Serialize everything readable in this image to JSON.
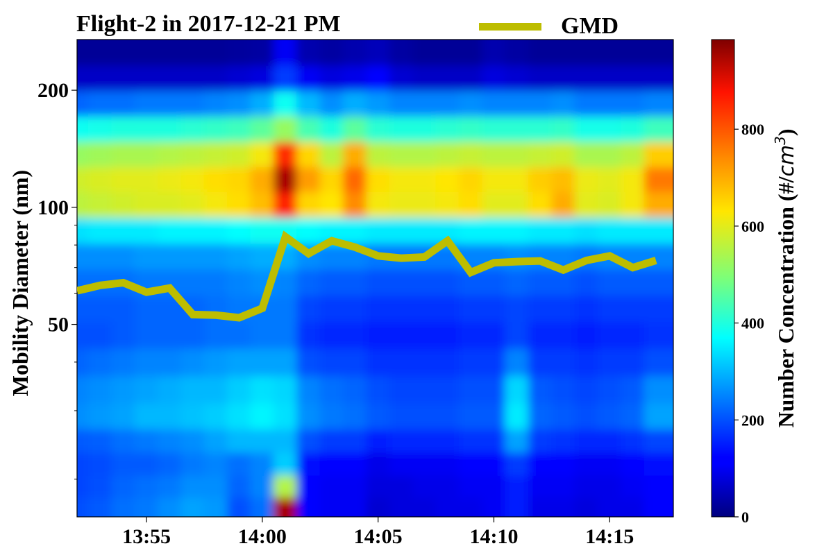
{
  "title": "Flight-2 in 2017-12-21 PM",
  "colors": {
    "gmd_line": "#bdbd00"
  },
  "chart_data": {
    "type": "heatmap",
    "title": "Flight-2 in 2017-12-21 PM",
    "ylabel": "Mobility Diameter (nm)",
    "colorbar_label_text": "Number Concentration (#/",
    "colorbar_label_unit": "cm",
    "colorbar_label_exp": "3",
    "colorbar_label_close": ")",
    "colormap": "jet",
    "y_scale": "log",
    "xlim": [
      "13:52:00",
      "14:17:45"
    ],
    "ylim": [
      16,
      270
    ],
    "clim": [
      0,
      985
    ],
    "x_tick_labels": [
      "13:55",
      "14:00",
      "14:05",
      "14:10",
      "14:15"
    ],
    "x_ticks": [
      "13:55",
      "14:00",
      "14:05",
      "14:10",
      "14:15"
    ],
    "y_tick_labels": [
      "50",
      "100",
      "200"
    ],
    "y_ticks": [
      50,
      100,
      200
    ],
    "colorbar_ticks": [
      0,
      200,
      400,
      600,
      800
    ],
    "legend": [
      {
        "label": "GMD",
        "location": "top-center"
      }
    ],
    "times": [
      "13:52",
      "13:53",
      "13:54",
      "13:55",
      "13:56",
      "13:57",
      "13:58",
      "13:59",
      "14:00",
      "14:01",
      "14:02",
      "14:03",
      "14:04",
      "14:05",
      "14:06",
      "14:07",
      "14:08",
      "14:09",
      "14:10",
      "14:11",
      "14:12",
      "14:13",
      "14:14",
      "14:15",
      "14:16",
      "14:17"
    ],
    "diameters": [
      17,
      19,
      22,
      25,
      29,
      34,
      40,
      47,
      55,
      64,
      75,
      87,
      102,
      118,
      137,
      159,
      185,
      215,
      250
    ],
    "concentration": [
      [
        200,
        210,
        230,
        240,
        260,
        280,
        270,
        200,
        230,
        950,
        110,
        100,
        100,
        70,
        80,
        80,
        90,
        90,
        100,
        150,
        90,
        90,
        80,
        90,
        90,
        110
      ],
      [
        190,
        200,
        220,
        230,
        240,
        260,
        260,
        220,
        250,
        550,
        110,
        100,
        100,
        80,
        80,
        90,
        90,
        100,
        100,
        150,
        100,
        100,
        90,
        90,
        100,
        120
      ],
      [
        190,
        195,
        210,
        210,
        220,
        240,
        250,
        230,
        250,
        320,
        130,
        110,
        110,
        90,
        100,
        100,
        100,
        110,
        110,
        180,
        110,
        110,
        100,
        100,
        110,
        130
      ],
      [
        210,
        215,
        230,
        240,
        250,
        260,
        280,
        300,
        300,
        300,
        200,
        180,
        180,
        150,
        160,
        160,
        160,
        170,
        170,
        280,
        180,
        170,
        160,
        160,
        170,
        190
      ],
      [
        260,
        270,
        280,
        300,
        300,
        310,
        320,
        340,
        360,
        340,
        260,
        240,
        230,
        210,
        200,
        200,
        200,
        210,
        210,
        350,
        220,
        210,
        200,
        210,
        220,
        280
      ],
      [
        250,
        260,
        270,
        280,
        290,
        300,
        300,
        320,
        340,
        330,
        250,
        230,
        220,
        200,
        190,
        190,
        190,
        200,
        200,
        330,
        210,
        200,
        190,
        200,
        210,
        260
      ],
      [
        220,
        230,
        240,
        250,
        250,
        260,
        270,
        280,
        280,
        280,
        200,
        190,
        190,
        170,
        170,
        170,
        170,
        180,
        180,
        250,
        180,
        180,
        170,
        180,
        180,
        200
      ],
      [
        200,
        200,
        210,
        220,
        220,
        220,
        230,
        230,
        240,
        240,
        170,
        160,
        160,
        150,
        150,
        150,
        150,
        160,
        160,
        190,
        160,
        160,
        150,
        160,
        160,
        170
      ],
      [
        210,
        210,
        210,
        220,
        220,
        220,
        230,
        240,
        240,
        240,
        190,
        180,
        180,
        170,
        170,
        170,
        170,
        180,
        180,
        190,
        180,
        180,
        170,
        180,
        180,
        180
      ],
      [
        230,
        230,
        230,
        240,
        240,
        240,
        240,
        250,
        260,
        250,
        220,
        210,
        210,
        200,
        200,
        200,
        200,
        210,
        210,
        220,
        210,
        210,
        200,
        210,
        210,
        210
      ],
      [
        260,
        260,
        260,
        270,
        270,
        270,
        270,
        280,
        290,
        290,
        260,
        250,
        250,
        240,
        240,
        240,
        240,
        250,
        250,
        260,
        250,
        250,
        240,
        250,
        250,
        250
      ],
      [
        340,
        350,
        350,
        350,
        360,
        360,
        360,
        370,
        380,
        380,
        370,
        360,
        360,
        350,
        350,
        350,
        350,
        360,
        360,
        360,
        350,
        350,
        340,
        350,
        350,
        350
      ],
      [
        560,
        570,
        580,
        590,
        590,
        600,
        620,
        640,
        680,
        860,
        650,
        630,
        740,
        620,
        610,
        610,
        620,
        640,
        600,
        600,
        640,
        700,
        600,
        590,
        620,
        700
      ],
      [
        580,
        590,
        600,
        600,
        610,
        620,
        640,
        650,
        700,
        950,
        720,
        650,
        780,
        640,
        620,
        620,
        630,
        650,
        620,
        620,
        660,
        680,
        610,
        600,
        620,
        760
      ],
      [
        520,
        530,
        540,
        540,
        550,
        560,
        570,
        580,
        620,
        850,
        650,
        560,
        700,
        560,
        550,
        550,
        560,
        570,
        560,
        560,
        570,
        580,
        540,
        540,
        560,
        660
      ],
      [
        380,
        390,
        400,
        400,
        400,
        410,
        420,
        430,
        460,
        520,
        440,
        400,
        460,
        410,
        400,
        400,
        410,
        420,
        410,
        410,
        410,
        420,
        390,
        390,
        400,
        430
      ],
      [
        220,
        230,
        230,
        240,
        240,
        240,
        250,
        260,
        290,
        380,
        300,
        260,
        290,
        270,
        250,
        250,
        250,
        260,
        250,
        250,
        250,
        260,
        240,
        240,
        240,
        250
      ],
      [
        60,
        60,
        60,
        60,
        60,
        60,
        60,
        70,
        80,
        180,
        100,
        80,
        90,
        120,
        70,
        60,
        60,
        60,
        80,
        70,
        60,
        60,
        60,
        60,
        60,
        60
      ],
      [
        20,
        20,
        20,
        20,
        20,
        20,
        20,
        25,
        30,
        100,
        40,
        30,
        40,
        50,
        30,
        20,
        20,
        20,
        40,
        30,
        20,
        20,
        20,
        20,
        20,
        20
      ]
    ],
    "series": [
      {
        "name": "GMD",
        "x": [
          "13:52",
          "13:53",
          "13:54",
          "13:55",
          "13:56",
          "13:57",
          "13:58",
          "13:59",
          "14:00",
          "14:01",
          "14:02",
          "14:03",
          "14:04",
          "14:05",
          "14:06",
          "14:07",
          "14:08",
          "14:09",
          "14:10",
          "14:11",
          "14:12",
          "14:13",
          "14:14",
          "14:15",
          "14:16",
          "14:17"
        ],
        "values": [
          61,
          63,
          64,
          60.5,
          62,
          53,
          52.8,
          52,
          55,
          84,
          76,
          82,
          79,
          75,
          74,
          74.5,
          82,
          68,
          72,
          72.5,
          72.8,
          69,
          73,
          75,
          70,
          73
        ]
      }
    ]
  }
}
